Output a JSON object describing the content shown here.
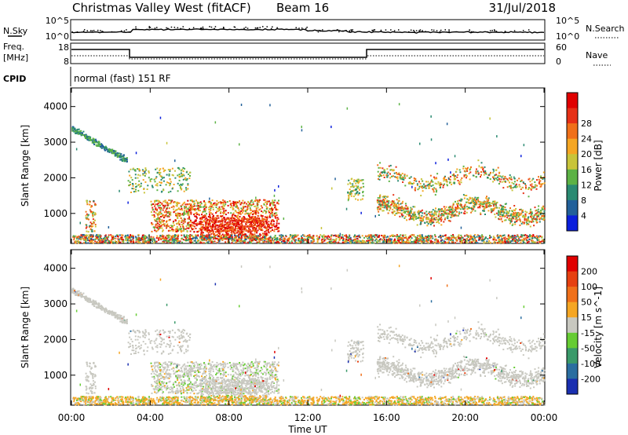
{
  "header": {
    "station": "Christmas Valley West (fitACF)",
    "beam": "Beam 16",
    "date": "31/Jul/2018"
  },
  "top_panels": {
    "nsky_label": "N.Sky",
    "nsky_ticks": [
      "10^5",
      "10^0"
    ],
    "nsearch_label": "N.Search",
    "nsearch_ticks": [
      "10^5",
      "10^0"
    ],
    "freq_label": "Freq.",
    "freq_unit": "[MHz]",
    "freq_ticks": [
      "18",
      "8"
    ],
    "nave_label": "Nave",
    "nave_ticks": [
      "60",
      "0"
    ],
    "cpid_label": "CPID",
    "cpid_value": "normal (fast) 151 RF"
  },
  "chart_data": [
    {
      "type": "heatmap",
      "name": "power",
      "ylabel": "Slant Range [km]",
      "y_ticks": [
        1000,
        2000,
        3000,
        4000
      ],
      "ylim": [
        180,
        4500
      ],
      "xlim": [
        0,
        24
      ],
      "colorbar_label": "Power [dB]",
      "colorbar_ticks": [
        "4",
        "8",
        "12",
        "16",
        "20",
        "24",
        "28"
      ],
      "colorbar_colors": [
        "#0b1fdc",
        "#22609a",
        "#2a8a72",
        "#5cb245",
        "#c8c43a",
        "#f5a623",
        "#f07019",
        "#e63016",
        "#e00000"
      ]
    },
    {
      "type": "heatmap",
      "name": "velocity",
      "ylabel": "Slant Range [km]",
      "y_ticks": [
        1000,
        2000,
        3000,
        4000
      ],
      "ylim": [
        180,
        4500
      ],
      "xlim": [
        0,
        24
      ],
      "colorbar_label": "Velocity [m s^-1]",
      "colorbar_ticks": [
        "200",
        "100",
        "50",
        "15",
        "-15",
        "-50",
        "-100",
        "-200"
      ],
      "colorbar_colors": [
        "#1a2fb0",
        "#2a6ea0",
        "#3a9a6a",
        "#66cc33",
        "#c8c8c0",
        "#f5a623",
        "#f07019",
        "#e64010",
        "#e00000"
      ]
    }
  ],
  "x_axis": {
    "ticks": [
      "00:00",
      "04:00",
      "08:00",
      "12:00",
      "16:00",
      "20:00",
      "00:00"
    ],
    "label": "Time UT"
  }
}
